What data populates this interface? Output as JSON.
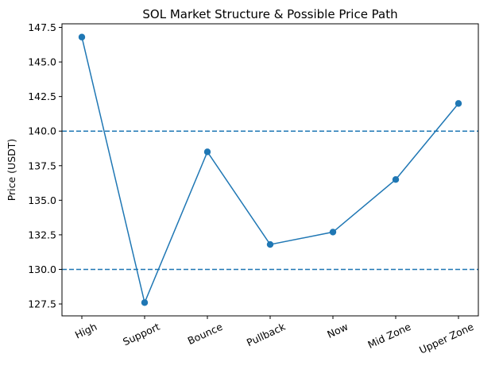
{
  "chart_data": {
    "type": "line",
    "title": "SOL Market Structure & Possible Price Path",
    "xlabel": "",
    "ylabel": "Price (USDT)",
    "categories": [
      "High",
      "Support",
      "Bounce",
      "Pullback",
      "Now",
      "Mid Zone",
      "Upper Zone"
    ],
    "series": [
      {
        "values": [
          146.8,
          127.6,
          138.5,
          131.8,
          132.7,
          136.5,
          142.0
        ],
        "color": "#1f77b4",
        "marker": "circle"
      }
    ],
    "reference_lines": [
      {
        "y": 140.0,
        "style": "dashed",
        "color": "#1f77b4"
      },
      {
        "y": 130.0,
        "style": "dashed",
        "color": "#1f77b4"
      }
    ],
    "ylim": [
      126.64,
      147.76
    ],
    "yticks": [
      127.5,
      130.0,
      132.5,
      135.0,
      137.5,
      140.0,
      142.5,
      145.0,
      147.5
    ],
    "ytick_labels": [
      "127.5",
      "130.0",
      "132.5",
      "135.0",
      "137.5",
      "140.0",
      "142.5",
      "145.0",
      "147.5"
    ],
    "grid": false,
    "xtick_rotation": 25
  }
}
